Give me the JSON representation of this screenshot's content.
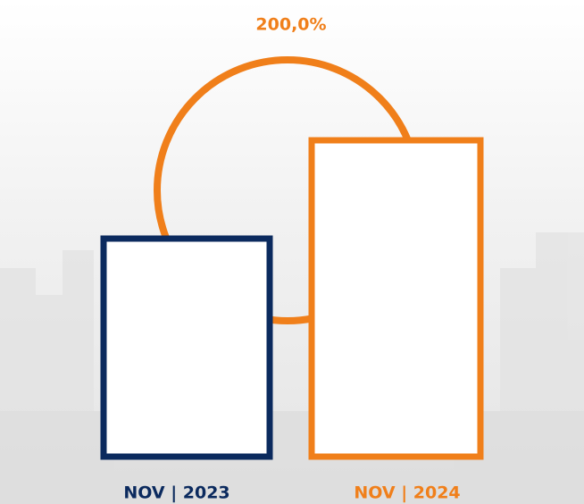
{
  "growth_label": "200,0%",
  "bars": [
    {
      "label": "NOV | 2023"
    },
    {
      "label": "NOV | 2024"
    }
  ]
}
